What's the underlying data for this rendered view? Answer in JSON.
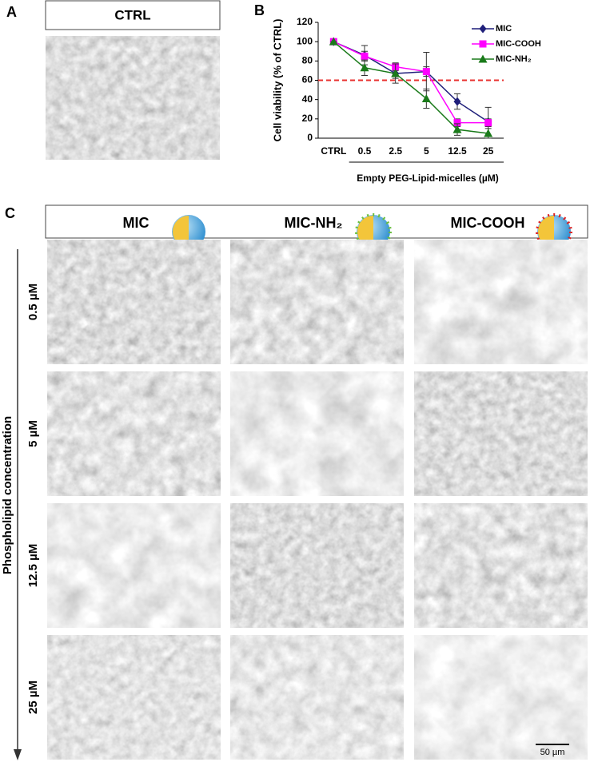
{
  "panel_labels": [
    "A",
    "B",
    "C"
  ],
  "ctrl_label": "CTRL",
  "columns": [
    "MIC",
    "MIC-NH₂",
    "MIC-COOH"
  ],
  "rows": [
    "0.5 µM",
    "5 µM",
    "12.5 µM",
    "25 µM"
  ],
  "row_axis_label": "Phospholipid concentration",
  "scale_bar": "50 µm",
  "chart_data": {
    "type": "line",
    "ylabel": "Cell viability (% of CTRL)",
    "xlabel": "Empty PEG-Lipid-micelles (µM)",
    "categories": [
      "CTRL",
      "0.5",
      "2.5",
      "5",
      "12.5",
      "25"
    ],
    "ylim": [
      0,
      120
    ],
    "yticks": [
      0,
      20,
      40,
      60,
      80,
      100,
      120
    ],
    "threshold": 60,
    "threshold_color": "#e8312f",
    "series": [
      {
        "name": "MIC",
        "color": "#1f1f7a",
        "marker": "diamond",
        "values": [
          100,
          86,
          67,
          69,
          38,
          17
        ],
        "errors": [
          0,
          10,
          5,
          20,
          8,
          15
        ]
      },
      {
        "name": "MIC-COOH",
        "color": "#ff00ff",
        "marker": "square",
        "values": [
          100,
          85,
          74,
          69,
          16,
          16
        ],
        "errors": [
          0,
          5,
          4,
          5,
          4,
          4
        ]
      },
      {
        "name": "MIC-NH₂",
        "color": "#1a7a1a",
        "marker": "triangle",
        "values": [
          100,
          73,
          67,
          41,
          9,
          5
        ],
        "errors": [
          0,
          8,
          10,
          10,
          6,
          5
        ]
      }
    ]
  }
}
